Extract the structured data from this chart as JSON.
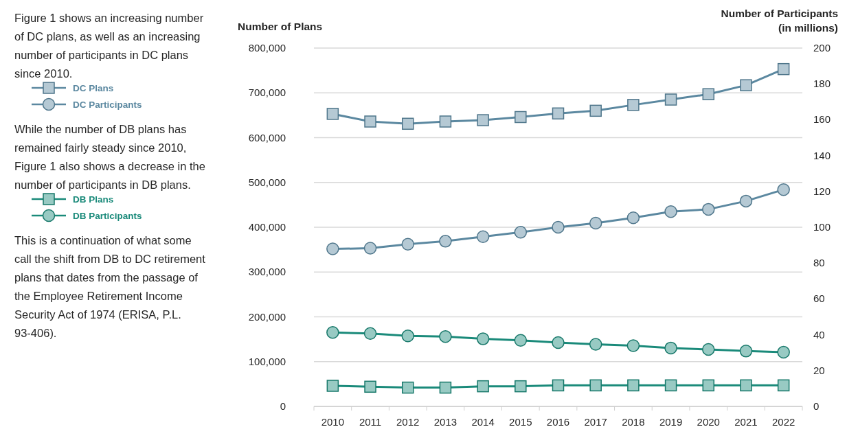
{
  "chart_data": {
    "type": "line",
    "categories": [
      "2010",
      "2011",
      "2012",
      "2013",
      "2014",
      "2015",
      "2016",
      "2017",
      "2018",
      "2019",
      "2020",
      "2021",
      "2022"
    ],
    "series": [
      {
        "name": "DC Plans",
        "color": "#5b88a0",
        "marker": "square",
        "values": [
          653000,
          636000,
          631000,
          636000,
          639000,
          646000,
          654000,
          660000,
          673000,
          685000,
          697000,
          717000,
          753000
        ]
      },
      {
        "name": "DC Participants",
        "color": "#5b88a0",
        "marker": "circle",
        "axis": "y2",
        "values": [
          87.9,
          88.3,
          90.5,
          92.2,
          94.7,
          97.2,
          100,
          102.3,
          105.3,
          108.7,
          110,
          114.6,
          121
        ]
      },
      {
        "name": "DB Plans",
        "color": "#1a8a7a",
        "marker": "square",
        "values": [
          46000,
          44000,
          42000,
          42000,
          45000,
          45000,
          47000,
          47000,
          47000,
          47000,
          47000,
          47000,
          47000
        ]
      },
      {
        "name": "DB Participants",
        "color": "#1a8a7a",
        "marker": "circle",
        "axis": "y2",
        "values": [
          41.3,
          40.7,
          39.4,
          39.0,
          37.7,
          36.9,
          35.6,
          34.7,
          33.9,
          32.6,
          31.8,
          30.9,
          30.3
        ]
      }
    ],
    "ylabel": "Number of Plans",
    "y2label": "Number of Participants\n(in millions)",
    "ylim": [
      0,
      800000
    ],
    "yticks": [
      {
        "value": 0,
        "label": "0"
      },
      {
        "value": 100000,
        "label": "100,000"
      },
      {
        "value": 200000,
        "label": "200,000"
      },
      {
        "value": 300000,
        "label": "300,000"
      },
      {
        "value": 400000,
        "label": "400,000"
      },
      {
        "value": 500000,
        "label": "500,000"
      },
      {
        "value": 600000,
        "label": "600,000"
      },
      {
        "value": 700000,
        "label": "700,000"
      },
      {
        "value": 800000,
        "label": "800,000"
      }
    ],
    "y2lim": [
      0,
      200
    ],
    "y2ticks": [
      0,
      20,
      40,
      60,
      80,
      100,
      120,
      140,
      160,
      180,
      200
    ],
    "grid": "y",
    "legend": "left",
    "line_style": "solid",
    "annotations": [
      "Figure 1 shows an increasing number of DC plans, as well as an increasing number of participants in DC plans since 2010.",
      "While the number of DB plans has remained fairly steady since 2010, Figure 1 also shows a decrease in the number of participants in DB plans.",
      "This is a continuation of what some call the shift from DB to DC retirement plans that dates from the passage of the Employee Retirement Income Security Act of 1974 (ERISA, P.L. 93-406)."
    ]
  }
}
